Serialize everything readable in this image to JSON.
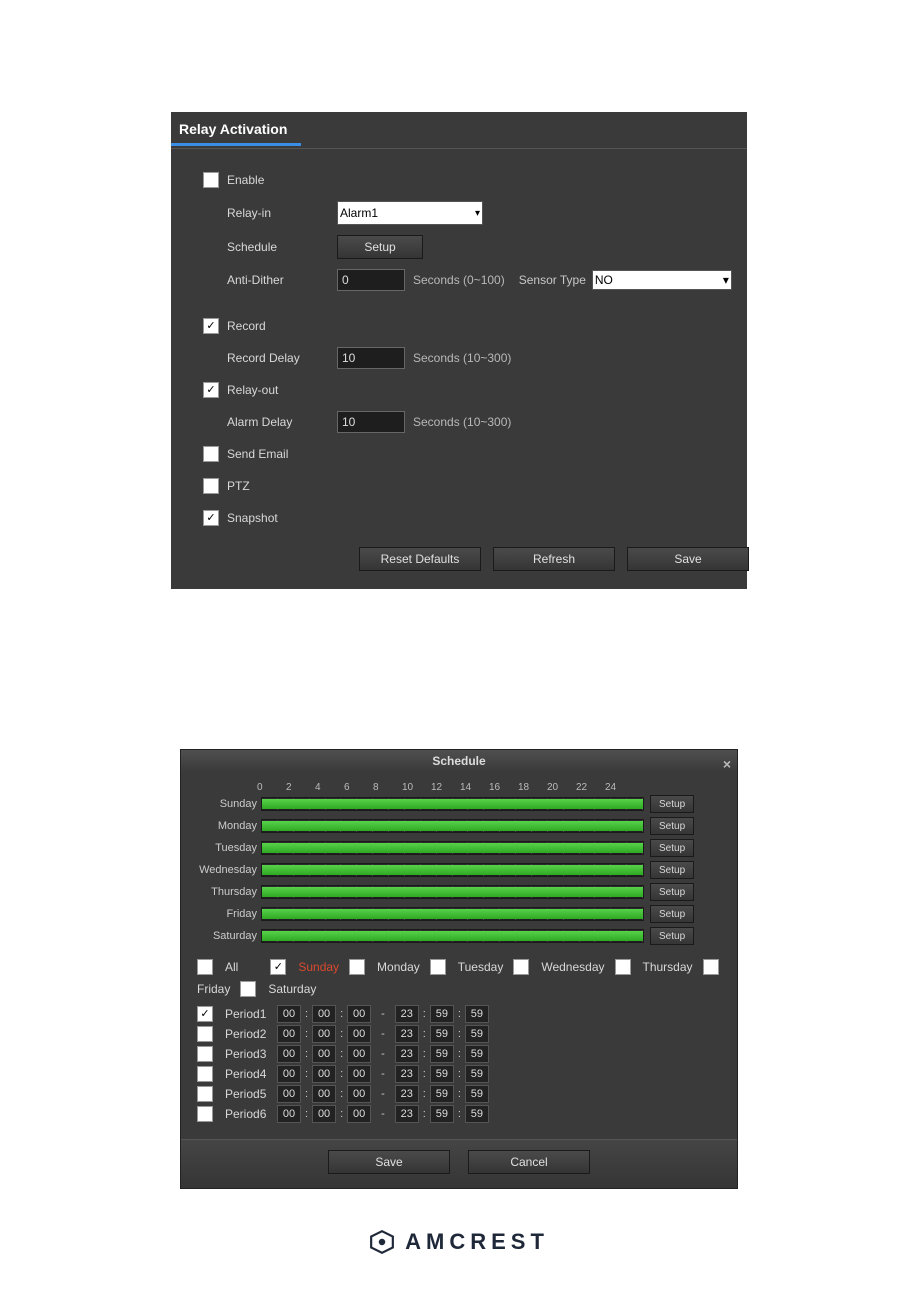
{
  "panel1": {
    "title": "Relay Activation",
    "enable": {
      "label": "Enable",
      "checked": false
    },
    "relay_in": {
      "label": "Relay-in",
      "value": "Alarm1"
    },
    "schedule": {
      "label": "Schedule",
      "button": "Setup"
    },
    "anti_dither": {
      "label": "Anti-Dither",
      "value": "0",
      "hint": "Seconds (0~100)"
    },
    "sensor": {
      "label": "Sensor Type",
      "value": "NO"
    },
    "record": {
      "label": "Record",
      "checked": true
    },
    "record_delay": {
      "label": "Record Delay",
      "value": "10",
      "hint": "Seconds (10~300)"
    },
    "relay_out": {
      "label": "Relay-out",
      "checked": true
    },
    "alarm_delay": {
      "label": "Alarm Delay",
      "value": "10",
      "hint": "Seconds (10~300)"
    },
    "send_email": {
      "label": "Send Email",
      "checked": false
    },
    "ptz": {
      "label": "PTZ",
      "checked": false
    },
    "snapshot": {
      "label": "Snapshot",
      "checked": true
    },
    "btn_reset": "Reset Defaults",
    "btn_refresh": "Refresh",
    "btn_save": "Save"
  },
  "dlg": {
    "title": "Schedule",
    "hours": [
      "0",
      "2",
      "4",
      "6",
      "8",
      "10",
      "12",
      "14",
      "16",
      "18",
      "20",
      "22",
      "24"
    ],
    "days": [
      "Sunday",
      "Monday",
      "Tuesday",
      "Wednesday",
      "Thursday",
      "Friday",
      "Saturday"
    ],
    "setup_label": "Setup",
    "dayopts": {
      "all": "All",
      "sunday": "Sunday",
      "monday": "Monday",
      "tuesday": "Tuesday",
      "wednesday": "Wednesday",
      "thursday": "Thursday",
      "friday": "Friday",
      "saturday": "Saturday"
    },
    "periods": [
      {
        "label": "Period1",
        "checked": true,
        "h1": "00",
        "m1": "00",
        "s1": "00",
        "h2": "23",
        "m2": "59",
        "s2": "59"
      },
      {
        "label": "Period2",
        "checked": false,
        "h1": "00",
        "m1": "00",
        "s1": "00",
        "h2": "23",
        "m2": "59",
        "s2": "59"
      },
      {
        "label": "Period3",
        "checked": false,
        "h1": "00",
        "m1": "00",
        "s1": "00",
        "h2": "23",
        "m2": "59",
        "s2": "59"
      },
      {
        "label": "Period4",
        "checked": false,
        "h1": "00",
        "m1": "00",
        "s1": "00",
        "h2": "23",
        "m2": "59",
        "s2": "59"
      },
      {
        "label": "Period5",
        "checked": false,
        "h1": "00",
        "m1": "00",
        "s1": "00",
        "h2": "23",
        "m2": "59",
        "s2": "59"
      },
      {
        "label": "Period6",
        "checked": false,
        "h1": "00",
        "m1": "00",
        "s1": "00",
        "h2": "23",
        "m2": "59",
        "s2": "59"
      }
    ],
    "btn_save": "Save",
    "btn_cancel": "Cancel"
  },
  "logo": "AMCREST",
  "colors": {
    "accent": "#3a8ee6",
    "bar_fill": "#3fbe30",
    "panel_bg": "#3a3a3a",
    "logo": "#1e2838"
  }
}
